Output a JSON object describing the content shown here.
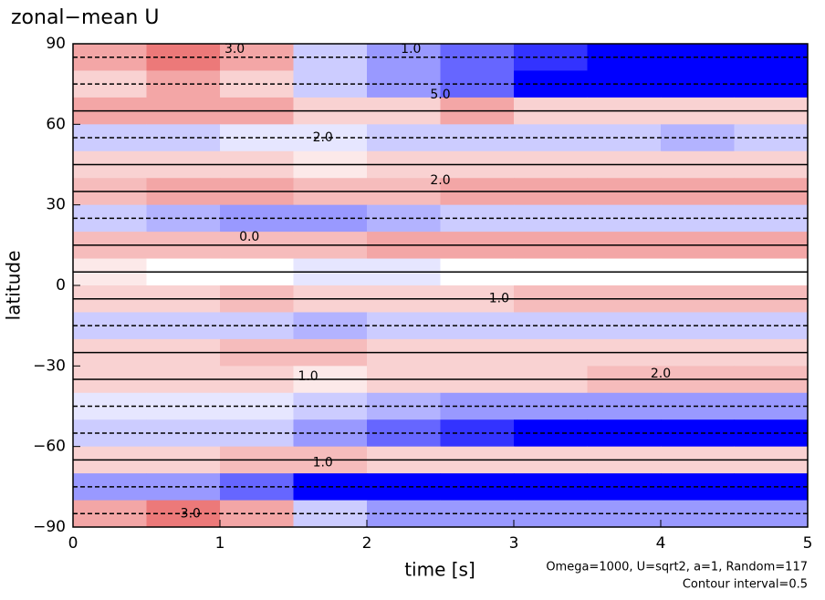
{
  "chart_data": {
    "type": "heatmap",
    "title": "zonal−mean U",
    "xlabel": "time [s]",
    "ylabel": "latitude",
    "annotations": [
      "Omega=1000, U=sqrt2, a=1, Random=117",
      "Contour interval=0.5"
    ],
    "xlim": [
      0,
      5
    ],
    "ylim": [
      -90,
      90
    ],
    "xticks": [
      0,
      1,
      2,
      3,
      4,
      5
    ],
    "yticks": [
      {
        "value": -90,
        "label": "−90"
      },
      {
        "value": -60,
        "label": "−60"
      },
      {
        "value": -30,
        "label": "−30"
      },
      0,
      30,
      60,
      90
    ],
    "x": [
      0.25,
      0.75,
      1.25,
      1.75,
      2.25,
      2.75,
      3.25,
      3.75,
      4.25,
      4.75
    ],
    "y": [
      85,
      75,
      65,
      55,
      45,
      35,
      25,
      15,
      5,
      -5,
      -15,
      -25,
      -35,
      -45,
      -55,
      -65,
      -75,
      -85
    ],
    "z": [
      [
        2,
        3,
        2,
        -1,
        -2,
        -3,
        -4,
        -5,
        -5,
        -5
      ],
      [
        1,
        2,
        1,
        -1,
        -2,
        -3,
        -5,
        -5,
        -5,
        -5
      ],
      [
        2,
        2,
        2,
        1,
        1,
        2,
        1,
        1,
        1,
        1
      ],
      [
        -1,
        -1,
        -0.5,
        -0.5,
        -1,
        -1,
        -1,
        -1,
        -1.5,
        -1
      ],
      [
        1,
        1,
        1,
        0.5,
        1,
        1,
        1,
        1,
        1,
        1
      ],
      [
        1.5,
        2,
        2,
        1.5,
        1.5,
        2,
        2,
        2,
        2,
        2
      ],
      [
        -1,
        -1.5,
        -2,
        -2,
        -1.5,
        -1,
        -1,
        -1,
        -1,
        -1
      ],
      [
        1.5,
        1.5,
        1.5,
        1.5,
        2,
        2,
        2,
        2,
        2,
        2
      ],
      [
        0.5,
        0,
        0,
        -0.5,
        -0.5,
        0,
        0,
        0,
        0,
        0
      ],
      [
        1,
        1,
        1.5,
        1,
        1,
        1,
        1.5,
        1.5,
        1.5,
        1.5
      ],
      [
        -1,
        -1,
        -1,
        -1.5,
        -1,
        -1,
        -1,
        -1,
        -1,
        -1
      ],
      [
        1,
        1,
        1.5,
        1.5,
        1,
        1,
        1,
        1,
        1,
        1
      ],
      [
        1,
        1,
        1,
        0.5,
        1,
        1,
        1,
        1.5,
        1.5,
        1.5
      ],
      [
        -0.5,
        -0.5,
        -0.5,
        -1,
        -1.5,
        -2,
        -2,
        -2,
        -2,
        -2
      ],
      [
        -1,
        -1,
        -1,
        -2,
        -3,
        -4,
        -5,
        -5,
        -5,
        -5
      ],
      [
        1,
        1,
        1.5,
        1.5,
        1,
        1,
        1,
        1,
        1,
        1
      ],
      [
        -2,
        -2,
        -3,
        -5,
        -5,
        -5,
        -5,
        -5,
        -5,
        -5
      ],
      [
        2,
        3,
        2,
        -1,
        -2,
        -2,
        -2,
        -2,
        -2,
        -2
      ]
    ],
    "zlim": [
      -5,
      5
    ],
    "negative_color": "#0000ff",
    "positive_color": "#e02020",
    "contour_labels": [
      {
        "x": 1.1,
        "y": 88,
        "value": 3,
        "label": "3.0"
      },
      {
        "x": 2.3,
        "y": 88,
        "value": 1,
        "label": "1.0"
      },
      {
        "x": 2.5,
        "y": 71,
        "value": 5,
        "label": "5.0"
      },
      {
        "x": 1.7,
        "y": 55,
        "value": 2,
        "label": "2.0"
      },
      {
        "x": 2.5,
        "y": 39,
        "value": 2,
        "label": "2.0"
      },
      {
        "x": 1.2,
        "y": 18,
        "value": 0,
        "label": "0.0"
      },
      {
        "x": 2.9,
        "y": -5,
        "value": 1,
        "label": "1.0"
      },
      {
        "x": 1.6,
        "y": -34,
        "value": 1,
        "label": "1.0"
      },
      {
        "x": 4.0,
        "y": -33,
        "value": 2,
        "label": "2.0"
      },
      {
        "x": 1.7,
        "y": -66,
        "value": 1,
        "label": "1.0"
      },
      {
        "x": 0.8,
        "y": -85,
        "value": 3,
        "label": "3.0"
      }
    ]
  }
}
